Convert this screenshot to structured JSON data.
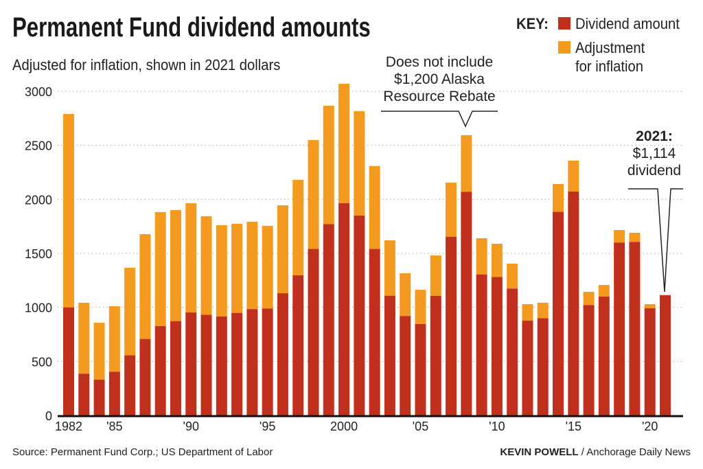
{
  "title": "Permanent Fund dividend amounts",
  "subtitle": "Adjusted for inflation, shown in 2021 dollars",
  "key": {
    "label": "KEY:",
    "items": [
      "Dividend amount",
      "Adjustment",
      "for inflation"
    ]
  },
  "colors": {
    "dividend": "#c0301c",
    "adjustment": "#f49a1f"
  },
  "annotations": {
    "rebate": [
      "Does not include",
      "$1,200 Alaska",
      "Resource Rebate"
    ],
    "latest": {
      "year": "2021:",
      "amount": "$1,114",
      "label": "dividend"
    }
  },
  "footer": {
    "source": "Source: Permanent Fund Corp.; US Department of Labor",
    "author": "KEVIN POWELL",
    "outlet": " / Anchorage Daily News"
  },
  "chart_data": {
    "type": "bar",
    "stacked": true,
    "title": "Permanent Fund dividend amounts",
    "subtitle": "Adjusted for inflation, shown in 2021 dollars",
    "ylim": [
      0,
      3000
    ],
    "yticks": [
      0,
      500,
      1000,
      1500,
      2000,
      2500,
      3000
    ],
    "grid": true,
    "legend": "top-right",
    "x": [
      1982,
      1983,
      1984,
      1985,
      1986,
      1987,
      1988,
      1989,
      1990,
      1991,
      1992,
      1993,
      1994,
      1995,
      1996,
      1997,
      1998,
      1999,
      2000,
      2001,
      2002,
      2003,
      2004,
      2005,
      2006,
      2007,
      2008,
      2009,
      2010,
      2011,
      2012,
      2013,
      2014,
      2015,
      2016,
      2017,
      2018,
      2019,
      2020,
      2021
    ],
    "xtick_labels": [
      {
        "year": 1982,
        "label": "1982"
      },
      {
        "year": 1985,
        "label": "'85"
      },
      {
        "year": 1990,
        "label": "'90"
      },
      {
        "year": 1995,
        "label": "'95"
      },
      {
        "year": 2000,
        "label": "2000"
      },
      {
        "year": 2005,
        "label": "'05"
      },
      {
        "year": 2010,
        "label": "'10"
      },
      {
        "year": 2015,
        "label": "'15"
      },
      {
        "year": 2020,
        "label": "'20"
      }
    ],
    "series": [
      {
        "name": "Dividend amount",
        "values": [
          1000,
          386,
          331,
          404,
          556,
          708,
          827,
          873,
          953,
          931,
          916,
          949,
          984,
          990,
          1131,
          1297,
          1541,
          1770,
          1964,
          1850,
          1541,
          1108,
          920,
          846,
          1107,
          1654,
          2069,
          1305,
          1281,
          1174,
          878,
          900,
          1884,
          2072,
          1022,
          1100,
          1600,
          1606,
          992,
          1114
        ]
      },
      {
        "name": "Adjustment for inflation",
        "totals": [
          2790,
          1043,
          858,
          1011,
          1367,
          1678,
          1882,
          1901,
          1964,
          1844,
          1761,
          1774,
          1793,
          1755,
          1945,
          2181,
          2549,
          2867,
          3070,
          2816,
          2308,
          1621,
          1316,
          1163,
          1481,
          2155,
          2594,
          1640,
          1589,
          1405,
          1030,
          1043,
          2142,
          2358,
          1144,
          1208,
          1716,
          1691,
          1030,
          1114
        ]
      }
    ]
  }
}
